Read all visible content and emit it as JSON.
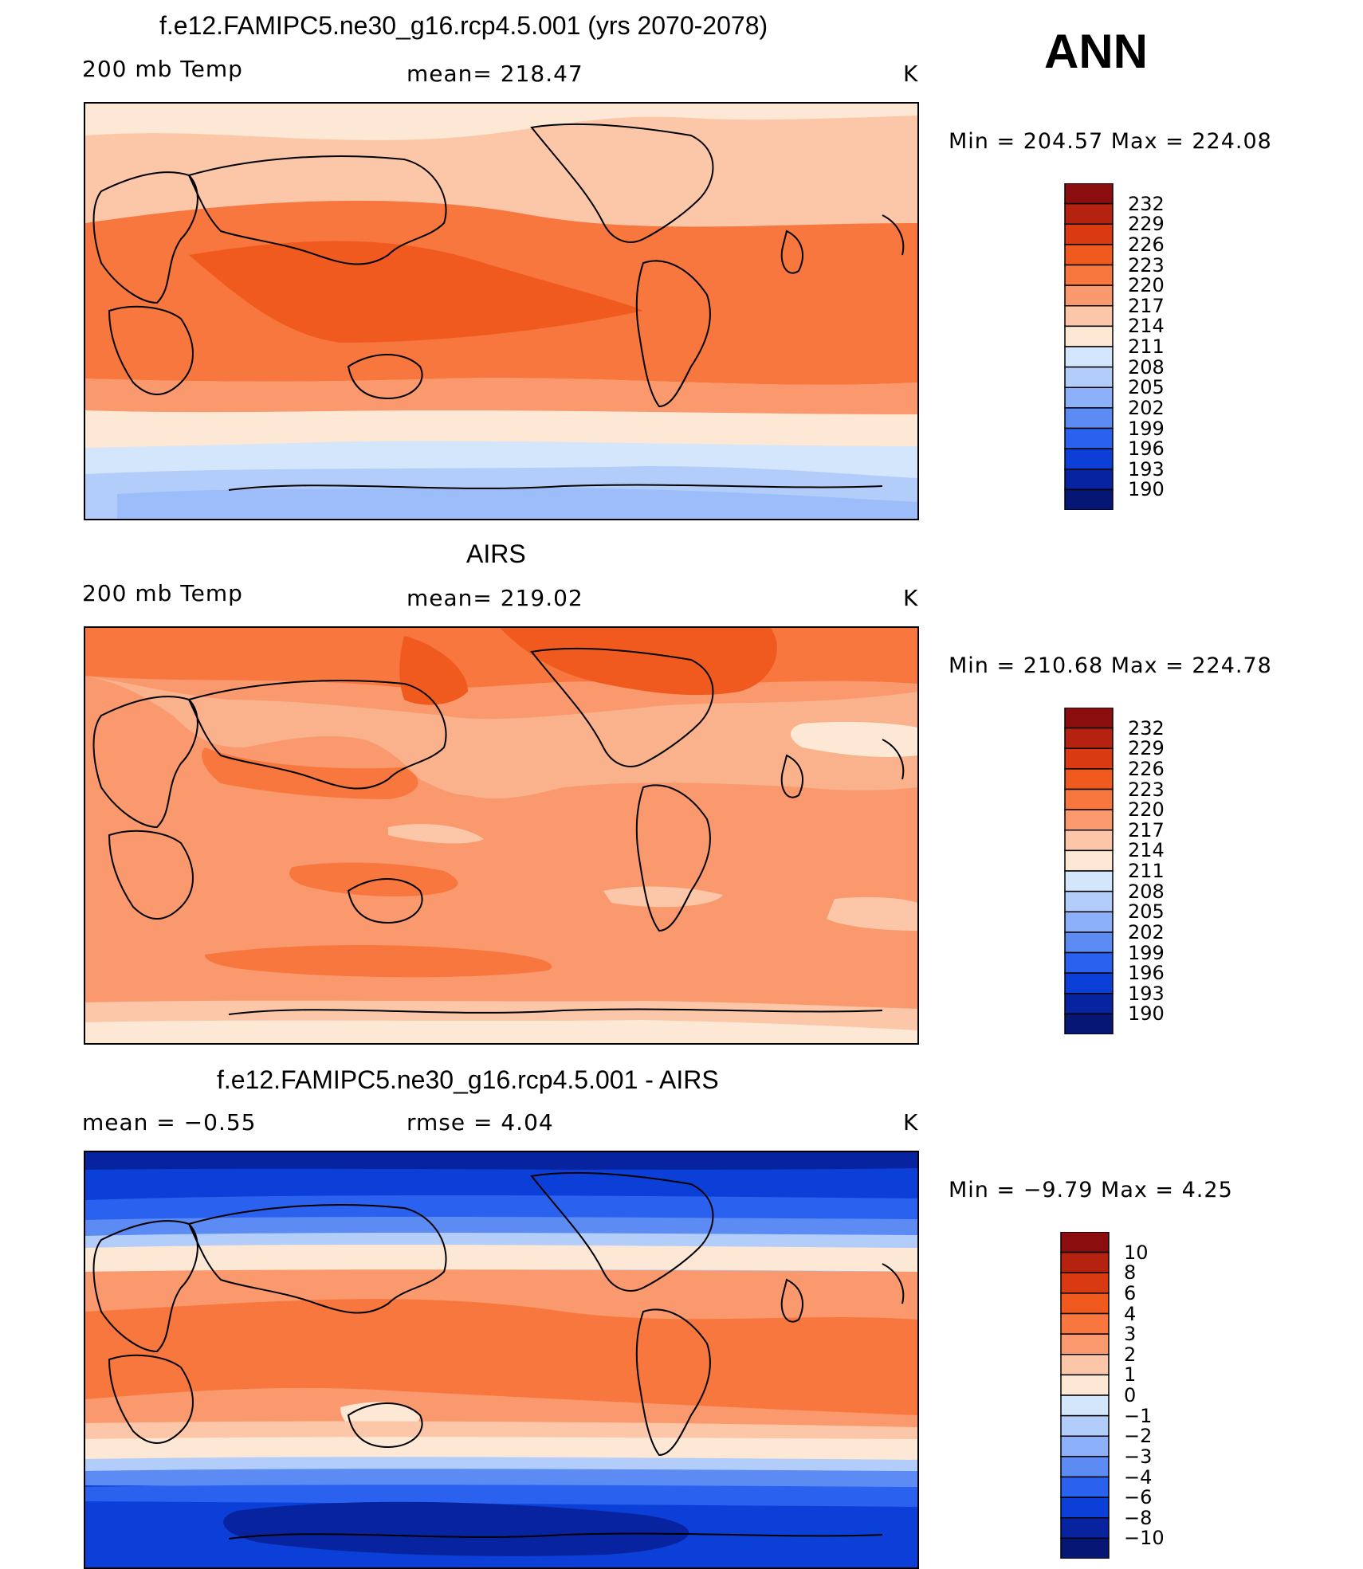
{
  "season": "ANN",
  "panels": [
    {
      "title": "f.e12.FAMIPC5.ne30_g16.rcp4.5.001 (yrs 2070-2078)",
      "left_label": "200 mb Temp",
      "center_label": "mean= 218.47",
      "units": "K",
      "minmax": "Min  =  204.57  Max  =  224.08",
      "colorbar": [
        "232",
        "229",
        "226",
        "223",
        "220",
        "217",
        "214",
        "211",
        "208",
        "205",
        "202",
        "199",
        "196",
        "193",
        "190"
      ],
      "colors": [
        "#8b0d0d",
        "#b62210",
        "#d93a12",
        "#f05a1f",
        "#f7773e",
        "#f9996d",
        "#fcc7a8",
        "#fde8d5",
        "#d4e6fc",
        "#b3cdfb",
        "#8cb0fa",
        "#5b8bf3",
        "#2a62ef",
        "#0c3fd8",
        "#08239f",
        "#061675"
      ]
    },
    {
      "title": "AIRS",
      "left_label": "200 mb Temp",
      "center_label": "mean= 219.02",
      "units": "K",
      "minmax": "Min  =  210.68  Max  =  224.78",
      "colorbar": [
        "232",
        "229",
        "226",
        "223",
        "220",
        "217",
        "214",
        "211",
        "208",
        "205",
        "202",
        "199",
        "196",
        "193",
        "190"
      ],
      "colors": [
        "#8b0d0d",
        "#b62210",
        "#d93a12",
        "#f05a1f",
        "#f7773e",
        "#f9996d",
        "#fcc7a8",
        "#fde8d5",
        "#d4e6fc",
        "#b3cdfb",
        "#8cb0fa",
        "#5b8bf3",
        "#2a62ef",
        "#0c3fd8",
        "#08239f",
        "#061675"
      ]
    },
    {
      "title": "f.e12.FAMIPC5.ne30_g16.rcp4.5.001 - AIRS",
      "left_label": "mean  =    −0.55",
      "center_label": "rmse  =     4.04",
      "units": "K",
      "minmax": "Min  =    −9.79  Max  =     4.25",
      "colorbar": [
        "10",
        "8",
        "6",
        "4",
        "3",
        "2",
        "1",
        "0",
        "−1",
        "−2",
        "−3",
        "−4",
        "−6",
        "−8",
        "−10"
      ],
      "colors": [
        "#8b0d0d",
        "#b62210",
        "#d93a12",
        "#f05a1f",
        "#f7773e",
        "#f9996d",
        "#fcc7a8",
        "#fde8d5",
        "#d4e6fc",
        "#b3cdfb",
        "#8cb0fa",
        "#5b8bf3",
        "#2a62ef",
        "#0c3fd8",
        "#08239f",
        "#061675"
      ]
    }
  ]
}
